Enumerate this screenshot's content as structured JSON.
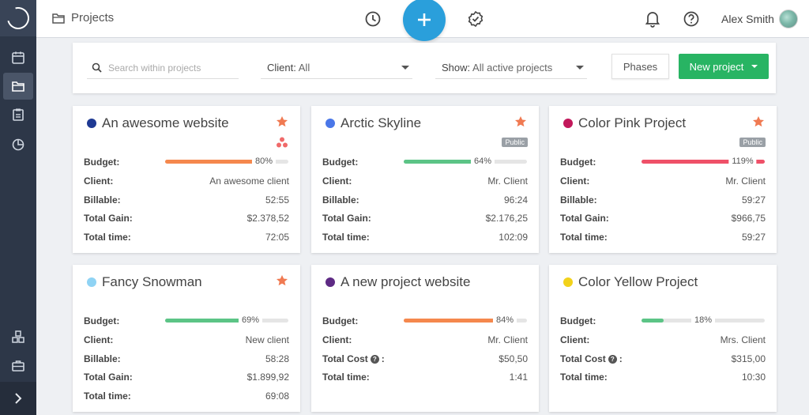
{
  "header": {
    "breadcrumb": "Projects",
    "user_name": "Alex Smith"
  },
  "filters": {
    "search_placeholder": "Search within projects",
    "client_label": "Client:",
    "client_value": "All",
    "show_label": "Show:",
    "show_value": "All active projects",
    "phases_label": "Phases",
    "new_project_label": "New project"
  },
  "colors": {
    "accent_blue": "#2a9fdb",
    "new_green": "#28b463",
    "star": "#f07a52",
    "bar_orange": "#f5884d",
    "bar_green": "#5cc486",
    "bar_red": "#ef5068"
  },
  "projects": [
    {
      "name": "An awesome website",
      "dot_color": "#1f3a93",
      "starred": true,
      "badge": "",
      "icon": "asana-triangle-icon",
      "rows": [
        {
          "label": "Budget:",
          "type": "bar",
          "percent": 80,
          "percent_label": "80%",
          "bar_color": "#f5884d"
        },
        {
          "label": "Client:",
          "value": "An awesome client"
        },
        {
          "label": "Billable:",
          "value": "52:55"
        },
        {
          "label": "Total Gain:",
          "value": "$2.378,52"
        },
        {
          "label": "Total time:",
          "value": "72:05"
        }
      ]
    },
    {
      "name": "Arctic Skyline",
      "dot_color": "#4a77e8",
      "starred": true,
      "badge": "Public",
      "icon": "",
      "rows": [
        {
          "label": "Budget:",
          "type": "bar",
          "percent": 64,
          "percent_label": "64%",
          "bar_color": "#5cc486"
        },
        {
          "label": "Client:",
          "value": "Mr. Client"
        },
        {
          "label": "Billable:",
          "value": "96:24"
        },
        {
          "label": "Total Gain:",
          "value": "$2.176,25"
        },
        {
          "label": "Total time:",
          "value": "102:09"
        }
      ]
    },
    {
      "name": "Color Pink Project",
      "dot_color": "#c2185b",
      "starred": true,
      "badge": "Public",
      "icon": "",
      "rows": [
        {
          "label": "Budget:",
          "type": "bar",
          "percent": 119,
          "percent_label": "119%",
          "bar_color": "#ef5068"
        },
        {
          "label": "Client:",
          "value": "Mr. Client"
        },
        {
          "label": "Billable:",
          "value": "59:27"
        },
        {
          "label": "Total Gain:",
          "value": "$966,75"
        },
        {
          "label": "Total time:",
          "value": "59:27"
        }
      ]
    },
    {
      "name": "Fancy Snowman",
      "dot_color": "#8fd3f4",
      "starred": true,
      "badge": "",
      "icon": "",
      "rows": [
        {
          "label": "Budget:",
          "type": "bar",
          "percent": 69,
          "percent_label": "69%",
          "bar_color": "#5cc486"
        },
        {
          "label": "Client:",
          "value": "New client"
        },
        {
          "label": "Billable:",
          "value": "58:28"
        },
        {
          "label": "Total Gain:",
          "value": "$1.899,92"
        },
        {
          "label": "Total time:",
          "value": "69:08"
        }
      ]
    },
    {
      "name": "A new project website",
      "dot_color": "#5e2a84",
      "starred": false,
      "badge": "",
      "icon": "",
      "rows": [
        {
          "label": "Budget:",
          "type": "bar",
          "percent": 84,
          "percent_label": "84%",
          "bar_color": "#f5884d"
        },
        {
          "label": "Client:",
          "value": "Mr. Client"
        },
        {
          "label": "Total Cost",
          "help": true,
          "value": "$50,50"
        },
        {
          "label": "Total time:",
          "value": "1:41"
        }
      ]
    },
    {
      "name": "Color Yellow Project",
      "dot_color": "#f2d21b",
      "starred": false,
      "badge": "",
      "icon": "",
      "rows": [
        {
          "label": "Budget:",
          "type": "bar",
          "percent": 18,
          "percent_label": "18%",
          "bar_color": "#5cc486"
        },
        {
          "label": "Client:",
          "value": "Mrs. Client"
        },
        {
          "label": "Total Cost",
          "help": true,
          "value": "$315,00"
        },
        {
          "label": "Total time:",
          "value": "10:30"
        }
      ]
    }
  ]
}
